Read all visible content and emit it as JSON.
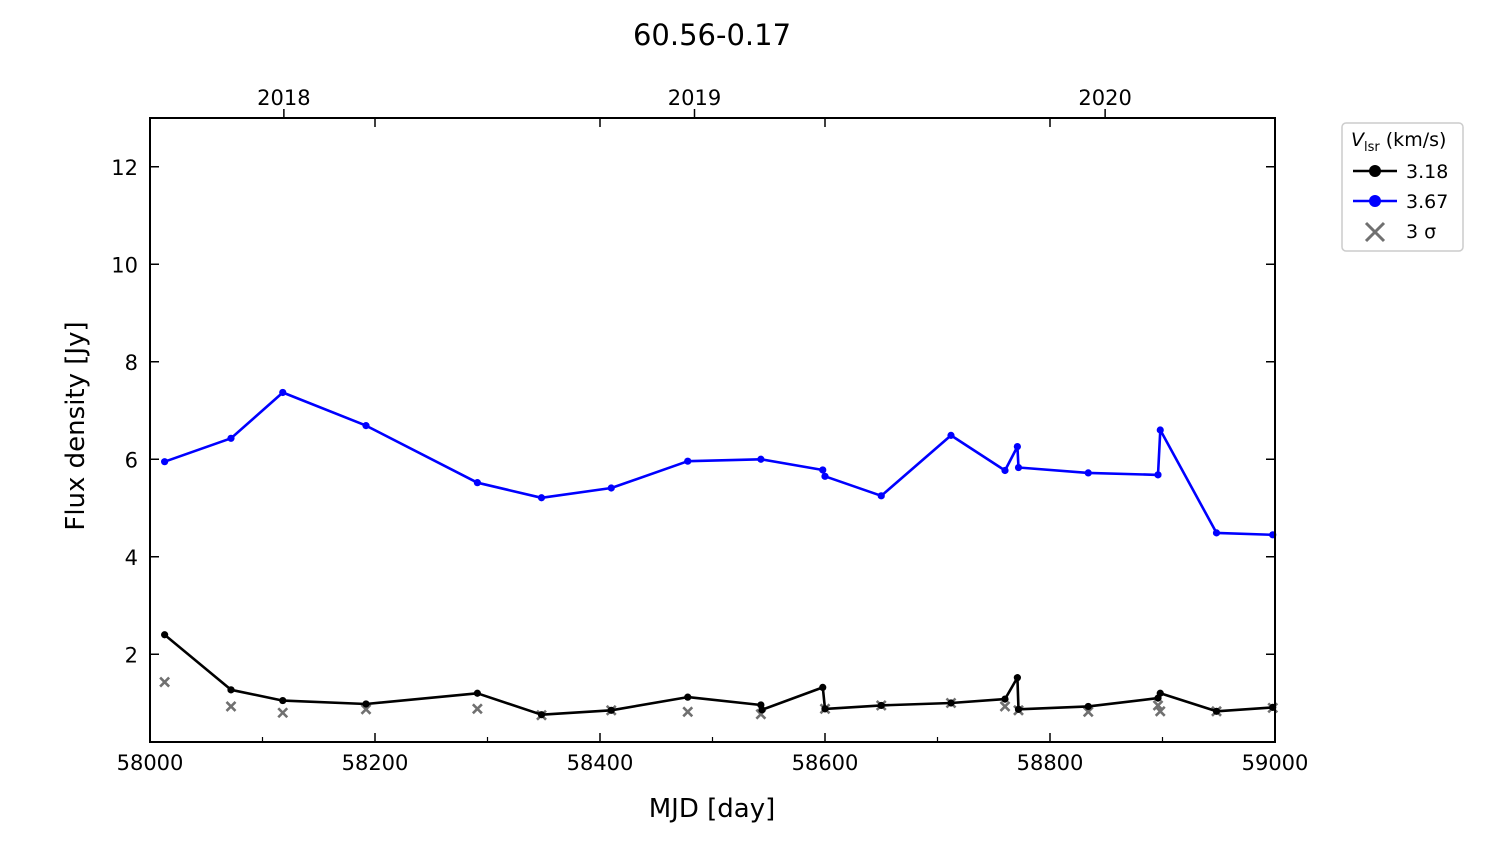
{
  "chart_data": {
    "type": "line",
    "title": "60.56-0.17",
    "xlabel": "MJD [day]",
    "ylabel": "Flux density [Jy]",
    "xlim": [
      58000,
      59000
    ],
    "ylim": [
      0.2,
      13.0
    ],
    "x_ticks": [
      58000,
      58200,
      58400,
      58600,
      58800,
      59000
    ],
    "y_ticks": [
      2,
      4,
      6,
      8,
      10,
      12
    ],
    "top_axis": {
      "ticks": [
        {
          "label": "2018",
          "mjd": 58119
        },
        {
          "label": "2019",
          "mjd": 58484
        },
        {
          "label": "2020",
          "mjd": 58849
        }
      ]
    },
    "grid": false,
    "legend": {
      "title_symbol": "V",
      "title_sub": "lsr",
      "title_unit": " (km/s)",
      "placement": "outside-top-right",
      "entries": [
        "3.18",
        "3.67",
        "3 σ"
      ]
    },
    "series": [
      {
        "name": "3.18",
        "color": "#000000",
        "points": [
          [
            58013,
            2.4
          ],
          [
            58072,
            1.27
          ],
          [
            58118,
            1.05
          ],
          [
            58192,
            0.98
          ],
          [
            58291,
            1.2
          ],
          [
            58348,
            0.76
          ],
          [
            58410,
            0.85
          ],
          [
            58478,
            1.12
          ],
          [
            58543,
            0.96
          ],
          [
            58544,
            0.86
          ],
          [
            58598,
            1.32
          ],
          [
            58600,
            0.88
          ],
          [
            58650,
            0.95
          ],
          [
            58712,
            1.0
          ],
          [
            58760,
            1.08
          ],
          [
            58771,
            1.52
          ],
          [
            58772,
            0.87
          ],
          [
            58834,
            0.93
          ],
          [
            58896,
            1.1
          ],
          [
            58898,
            1.2
          ],
          [
            58948,
            0.83
          ],
          [
            58998,
            0.91
          ]
        ]
      },
      {
        "name": "3.67",
        "color": "#0000ff",
        "points": [
          [
            58013,
            5.95
          ],
          [
            58072,
            6.43
          ],
          [
            58118,
            7.37
          ],
          [
            58192,
            6.69
          ],
          [
            58291,
            5.52
          ],
          [
            58348,
            5.21
          ],
          [
            58410,
            5.41
          ],
          [
            58478,
            5.96
          ],
          [
            58543,
            6.0
          ],
          [
            58598,
            5.78
          ],
          [
            58600,
            5.65
          ],
          [
            58650,
            5.25
          ],
          [
            58712,
            6.49
          ],
          [
            58760,
            5.77
          ],
          [
            58771,
            6.26
          ],
          [
            58772,
            5.83
          ],
          [
            58834,
            5.72
          ],
          [
            58896,
            5.68
          ],
          [
            58898,
            6.6
          ],
          [
            58948,
            4.49
          ],
          [
            58998,
            4.45
          ]
        ]
      }
    ],
    "sigma": {
      "name": "3 σ",
      "color": "#707070",
      "points": [
        [
          58013,
          1.43
        ],
        [
          58072,
          0.93
        ],
        [
          58118,
          0.8
        ],
        [
          58192,
          0.87
        ],
        [
          58291,
          0.88
        ],
        [
          58348,
          0.75
        ],
        [
          58410,
          0.85
        ],
        [
          58478,
          0.82
        ],
        [
          58543,
          0.77
        ],
        [
          58600,
          0.88
        ],
        [
          58650,
          0.95
        ],
        [
          58712,
          1.0
        ],
        [
          58760,
          0.93
        ],
        [
          58772,
          0.85
        ],
        [
          58834,
          0.82
        ],
        [
          58896,
          0.95
        ],
        [
          58898,
          0.83
        ],
        [
          58948,
          0.83
        ],
        [
          58998,
          0.9
        ]
      ]
    }
  }
}
